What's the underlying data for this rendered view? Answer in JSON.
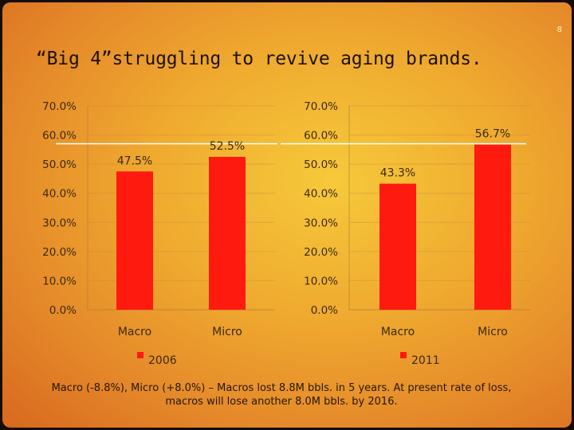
{
  "page_number": "8",
  "title": "“Big 4”struggling to revive aging brands.",
  "caption": "Macro (-8.8%), Micro (+8.0%) – Macros lost 8.8M bbls. in 5 years. At present rate of loss, macros will lose another 8.0M bbls. by 2016.",
  "colors": {
    "bar": "#ff1a10",
    "reference_line": "#ffffff"
  },
  "chart_data": [
    {
      "type": "bar",
      "categories": [
        "Macro",
        "Micro"
      ],
      "series": [
        {
          "name": "2006",
          "values": [
            47.5,
            52.5
          ]
        }
      ],
      "data_labels": [
        "47.5%",
        "52.5%"
      ],
      "y_ticks": [
        "70.0%",
        "60.0%",
        "50.0%",
        "40.0%",
        "30.0%",
        "20.0%",
        "10.0%",
        "0.0%"
      ],
      "ylim": [
        0,
        70
      ],
      "reference_line": 57,
      "legend": "bottom"
    },
    {
      "type": "bar",
      "categories": [
        "Macro",
        "Micro"
      ],
      "series": [
        {
          "name": "2011",
          "values": [
            43.3,
            56.7
          ]
        }
      ],
      "data_labels": [
        "43.3%",
        "56.7%"
      ],
      "y_ticks": [
        "70.0%",
        "60.0%",
        "50.0%",
        "40.0%",
        "30.0%",
        "20.0%",
        "10.0%",
        "0.0%"
      ],
      "ylim": [
        0,
        70
      ],
      "reference_line": 57,
      "legend": "bottom"
    }
  ]
}
